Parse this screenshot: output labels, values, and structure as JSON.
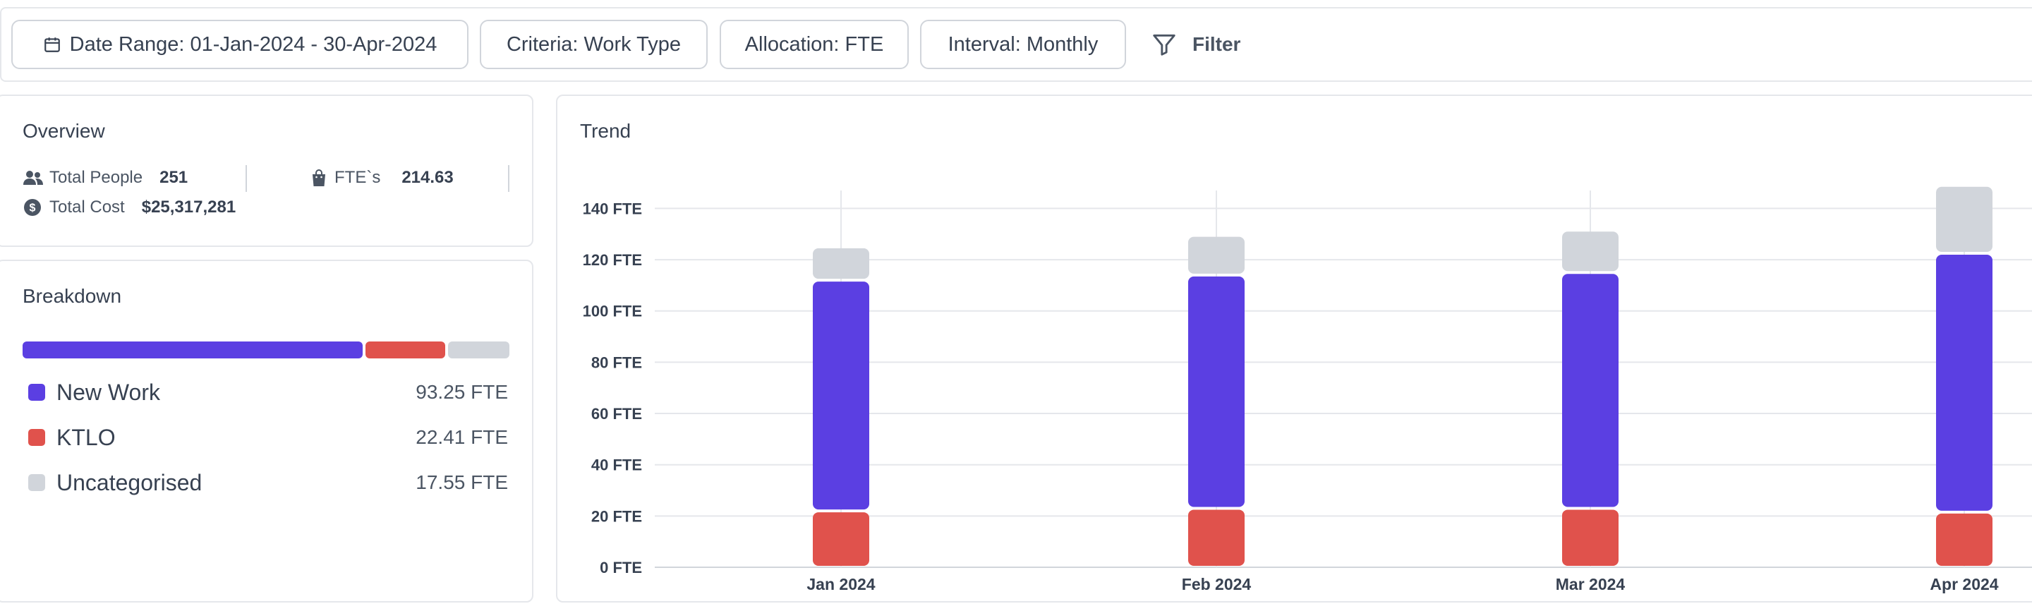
{
  "filters": {
    "date_range": "Date Range: 01-Jan-2024 - 30-Apr-2024",
    "criteria": "Criteria: Work Type",
    "allocation": "Allocation: FTE",
    "interval": "Interval: Monthly",
    "filter_label": "Filter"
  },
  "overview": {
    "title": "Overview",
    "total_people_label": "Total People",
    "total_people_value": "251",
    "ftes_label": "FTE`s",
    "ftes_value": "214.63",
    "total_cost_label": "Total Cost",
    "total_cost_value": "$25,317,281"
  },
  "breakdown": {
    "title": "Breakdown",
    "items": [
      {
        "name": "New Work",
        "value": "93.25 FTE",
        "amount": 93.25,
        "color": "#5b3fe2"
      },
      {
        "name": "KTLO",
        "value": "22.41 FTE",
        "amount": 22.41,
        "color": "#e0524c"
      },
      {
        "name": "Uncategorised",
        "value": "17.55 FTE",
        "amount": 17.55,
        "color": "#d1d5db"
      }
    ]
  },
  "trend": {
    "title": "Trend"
  },
  "chart_data": {
    "type": "bar",
    "stacked": true,
    "title": "Trend",
    "categories": [
      "Jan 2024",
      "Feb 2024",
      "Mar 2024",
      "Apr 2024"
    ],
    "series": [
      {
        "name": "KTLO",
        "color": "#e0524c",
        "values": [
          22,
          23,
          23,
          21.5
        ]
      },
      {
        "name": "New Work",
        "color": "#5b3fe2",
        "values": [
          90,
          91,
          92,
          101
        ]
      },
      {
        "name": "Uncategorised",
        "color": "#d1d5db",
        "values": [
          13,
          15.5,
          16.5,
          26.5
        ]
      }
    ],
    "y_ticks": [
      "0 FTE",
      "20 FTE",
      "40 FTE",
      "60 FTE",
      "80 FTE",
      "100 FTE",
      "120 FTE",
      "140 FTE"
    ],
    "ylim": [
      0,
      147
    ],
    "xlabel": "",
    "ylabel": ""
  }
}
